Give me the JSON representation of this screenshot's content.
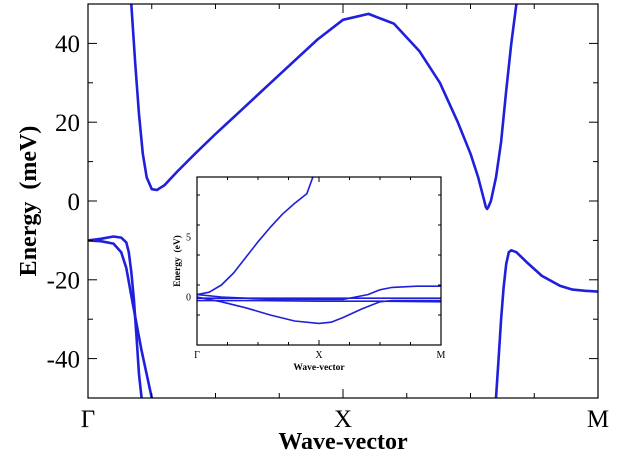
{
  "chart_data": [
    {
      "type": "line",
      "xlabel": "Wave-vector",
      "ylabel": "Energy  (meV)",
      "ylim": [
        -50,
        50
      ],
      "yticks": [
        40,
        20,
        0,
        -20,
        -40
      ],
      "xticks": [
        {
          "pos": 0,
          "label": "Γ"
        },
        {
          "pos": 1,
          "label": "X"
        },
        {
          "pos": 2,
          "label": "M"
        }
      ],
      "grid": false,
      "color": "#1f1fdc",
      "series": [
        {
          "x": [
            0.17,
            0.185,
            0.2,
            0.215,
            0.23,
            0.25,
            0.27,
            0.3,
            0.35,
            0.42,
            0.5,
            0.6,
            0.7,
            0.8,
            0.9,
            1.0,
            1.1,
            1.2,
            1.3,
            1.38,
            1.45,
            1.5,
            1.53,
            1.55,
            1.56,
            1.565,
            1.57,
            1.58,
            1.6,
            1.62,
            1.64,
            1.66,
            1.68
          ],
          "y": [
            50,
            35,
            22,
            12,
            6,
            3,
            2.8,
            4,
            7.5,
            12,
            17,
            23,
            29,
            35,
            41,
            46,
            47.5,
            45,
            38,
            30,
            20,
            12,
            6,
            1,
            -1.5,
            -2,
            -1.5,
            0,
            6,
            15,
            28,
            40,
            50
          ]
        },
        {
          "x": [
            1.6,
            1.61,
            1.62,
            1.63,
            1.64,
            1.65,
            1.66,
            1.68,
            1.72,
            1.78,
            1.85,
            1.9,
            1.95,
            2.0
          ],
          "y": [
            -50,
            -40,
            -30,
            -22,
            -16,
            -13,
            -12.5,
            -13,
            -15.5,
            -19,
            -21.5,
            -22.5,
            -22.8,
            -23
          ]
        },
        {
          "x": [
            0,
            0.05,
            0.1,
            0.13,
            0.15,
            0.17,
            0.19,
            0.21,
            0.23,
            0.25
          ],
          "y": [
            -10,
            -10.2,
            -10.8,
            -13,
            -17,
            -24,
            -31,
            -38,
            -44,
            -50
          ]
        },
        {
          "x": [
            0,
            0.05,
            0.1,
            0.13,
            0.15,
            0.16,
            0.17,
            0.18,
            0.19,
            0.2,
            0.21
          ],
          "y": [
            -10,
            -9.6,
            -9,
            -9.3,
            -10.5,
            -13,
            -18,
            -25,
            -34,
            -44,
            -50
          ]
        }
      ]
    },
    {
      "type": "line",
      "xlabel": "Wave-vector",
      "ylabel": "Energy  (eV)",
      "ylim": [
        -4,
        10
      ],
      "yticks": [
        5,
        0
      ],
      "xticks": [
        {
          "pos": 0,
          "label": "Γ"
        },
        {
          "pos": 1,
          "label": "X"
        },
        {
          "pos": 2,
          "label": "M"
        }
      ],
      "grid": false,
      "color": "#1f1fdc",
      "series": [
        {
          "x": [
            0,
            0.1,
            0.2,
            0.3,
            0.4,
            0.5,
            0.6,
            0.7,
            0.8,
            0.9,
            0.95
          ],
          "y": [
            0.2,
            0.4,
            1.0,
            2.0,
            3.3,
            4.6,
            5.8,
            6.9,
            7.8,
            8.6,
            10
          ]
        },
        {
          "x": [
            0,
            0.2,
            0.4,
            0.6,
            0.8,
            1.0,
            1.2,
            1.4,
            1.5,
            1.6,
            1.8,
            2.0
          ],
          "y": [
            0.2,
            0.0,
            -0.1,
            -0.2,
            -0.2,
            -0.2,
            -0.2,
            0.2,
            0.6,
            0.8,
            0.9,
            0.9
          ]
        },
        {
          "x": [
            0,
            0.5,
            1.0,
            1.5,
            2.0
          ],
          "y": [
            -0.1,
            -0.1,
            -0.1,
            -0.1,
            -0.1
          ]
        },
        {
          "x": [
            0,
            0.2,
            0.4,
            0.6,
            0.8,
            1.0,
            1.1,
            1.2,
            1.35,
            1.5,
            1.6,
            1.8,
            2.0
          ],
          "y": [
            0.0,
            -0.4,
            -0.9,
            -1.5,
            -2.0,
            -2.2,
            -2.1,
            -1.7,
            -1.0,
            -0.4,
            -0.3,
            -0.3,
            -0.3
          ]
        },
        {
          "x": [
            0,
            0.5,
            1.0,
            1.5,
            2.0
          ],
          "y": [
            -0.3,
            -0.3,
            -0.35,
            -0.35,
            -0.4
          ]
        }
      ]
    }
  ]
}
